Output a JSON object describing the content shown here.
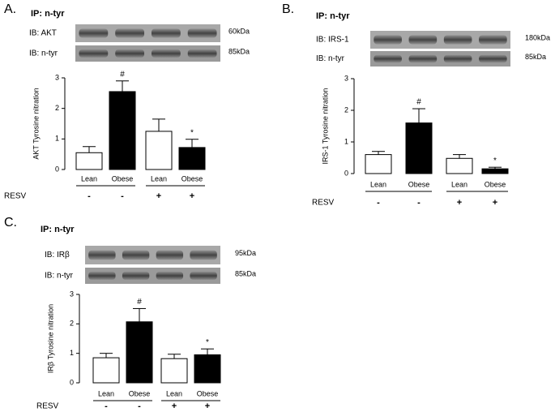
{
  "chart_data": [
    {
      "type": "bar",
      "panel": "A.",
      "ip_label": "IP: n-tyr",
      "blots": [
        {
          "label": "IB: AKT",
          "kda": "60kDa"
        },
        {
          "label": "IB: n-tyr",
          "kda": "85kDa"
        }
      ],
      "ylabel": "AKT Tyrosine nitration",
      "categories": [
        "Lean",
        "Obese",
        "Lean",
        "Obese"
      ],
      "values": [
        0.55,
        2.55,
        1.25,
        0.72
      ],
      "errors": [
        0.2,
        0.35,
        0.4,
        0.27
      ],
      "annotations": [
        null,
        "#",
        null,
        "*"
      ],
      "colors": [
        "#ffffff",
        "#000000",
        "#ffffff",
        "#000000"
      ],
      "treatment_label": "RESV",
      "treatment": [
        "-",
        "-",
        "+",
        "+"
      ],
      "ylim": [
        0,
        3
      ],
      "yticks": [
        0,
        1,
        2,
        3
      ]
    },
    {
      "type": "bar",
      "panel": "B.",
      "ip_label": "IP: n-tyr",
      "blots": [
        {
          "label": "IB: IRS-1",
          "kda": "180kDa"
        },
        {
          "label": "IB: n-tyr",
          "kda": "85kDa"
        }
      ],
      "ylabel": "IRS-1 Tyrosine nitration",
      "categories": [
        "Lean",
        "Obese",
        "Lean",
        "Obese"
      ],
      "values": [
        0.6,
        1.6,
        0.48,
        0.15
      ],
      "errors": [
        0.1,
        0.45,
        0.12,
        0.05
      ],
      "annotations": [
        null,
        "#",
        null,
        "*"
      ],
      "colors": [
        "#ffffff",
        "#000000",
        "#ffffff",
        "#000000"
      ],
      "treatment_label": "RESV",
      "treatment": [
        "-",
        "-",
        "+",
        "+"
      ],
      "ylim": [
        0,
        3
      ],
      "yticks": [
        0,
        1,
        2,
        3
      ]
    },
    {
      "type": "bar",
      "panel": "C.",
      "ip_label": "IP: n-tyr",
      "blots": [
        {
          "label": "IB: IRβ",
          "kda": "95kDa"
        },
        {
          "label": "IB: n-tyr",
          "kda": "85kDa"
        }
      ],
      "ylabel": "IRβ Tyrosine nitration",
      "categories": [
        "Lean",
        "Obese",
        "Lean",
        "Obese"
      ],
      "values": [
        0.85,
        2.07,
        0.82,
        0.95
      ],
      "errors": [
        0.15,
        0.45,
        0.15,
        0.2
      ],
      "annotations": [
        null,
        "#",
        null,
        "*"
      ],
      "colors": [
        "#ffffff",
        "#000000",
        "#ffffff",
        "#000000"
      ],
      "treatment_label": "RESV",
      "treatment": [
        "-",
        "-",
        "+",
        "+"
      ],
      "ylim": [
        0,
        3
      ],
      "yticks": [
        0,
        1,
        2,
        3
      ]
    }
  ]
}
